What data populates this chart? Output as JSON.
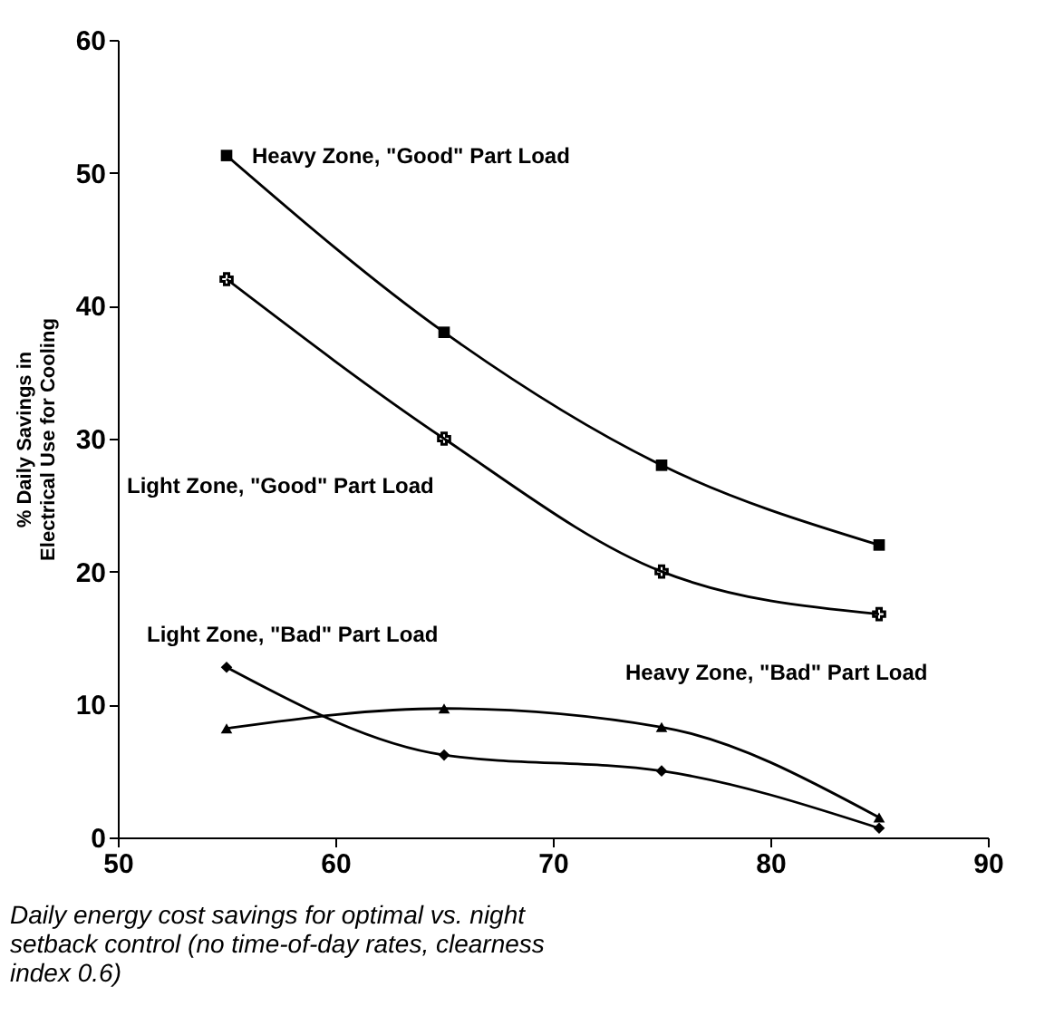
{
  "chart_data": {
    "type": "line",
    "xlabel": "Daily energy cost savings for optimal vs. night setback control (no time-of-day rates, clearness index 0.6)",
    "ylabel": "% Daily Savings in Electrical Use for Cooling",
    "x": [
      55,
      65,
      75,
      85
    ],
    "series": [
      {
        "name": "Heavy Zone, \"Good\" Part Load",
        "color": "#000000",
        "marker": "square",
        "values": [
          51.3,
          38,
          28,
          22
        ]
      },
      {
        "name": "Light Zone, \"Good\" Part Load",
        "color": "#000000",
        "marker": "cross",
        "values": [
          42,
          30,
          20,
          16.8
        ]
      },
      {
        "name": "Light Zone, \"Bad\" Part Load",
        "color": "#000000",
        "marker": "diamond",
        "values": [
          12.8,
          6.2,
          5,
          0.7
        ]
      },
      {
        "name": "Heavy Zone, \"Bad\" Part Load",
        "color": "#000000",
        "marker": "triangle",
        "values": [
          8.2,
          9.7,
          8.3,
          1.5
        ]
      }
    ],
    "xlim": [
      50,
      90
    ],
    "xticks": [
      50,
      60,
      70,
      80,
      90
    ],
    "ylim": [
      0,
      60
    ],
    "yticks": [
      0,
      10,
      20,
      30,
      40,
      50,
      60
    ],
    "grid": false,
    "legend": false,
    "line_style": "solid"
  }
}
